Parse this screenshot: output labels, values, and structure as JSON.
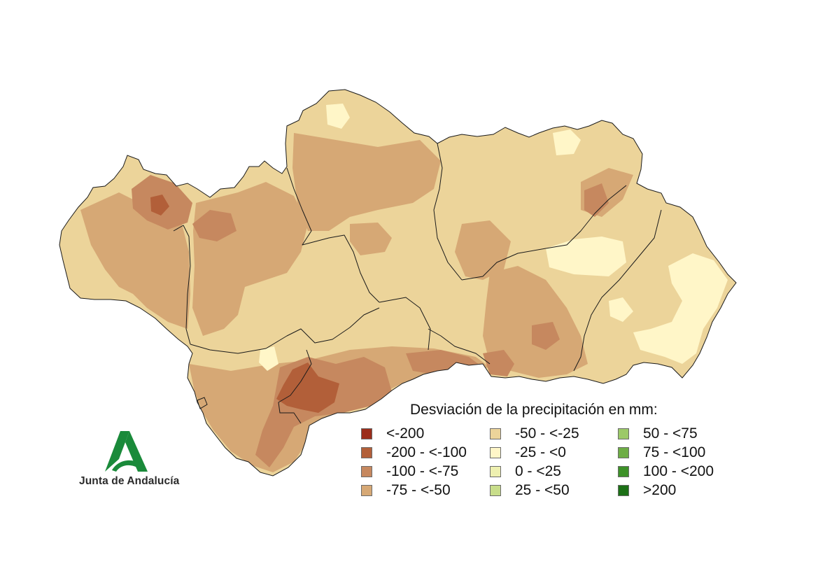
{
  "legend": {
    "title": "Desviación de la precipitación en mm:",
    "classes": [
      {
        "label": "<-200",
        "color": "#9b2d1a"
      },
      {
        "label": "-200 - <-100",
        "color": "#b25f39"
      },
      {
        "label": "-100 - <-75",
        "color": "#c6885f"
      },
      {
        "label": "-75 - <-50",
        "color": "#d6a875"
      },
      {
        "label": "-50 - <-25",
        "color": "#ecd49a"
      },
      {
        "label": "-25 - <0",
        "color": "#fff6c8"
      },
      {
        "label": "0 - <25",
        "color": "#eef0b0"
      },
      {
        "label": "25 - <50",
        "color": "#c8dd8a"
      },
      {
        "label": "50 - <75",
        "color": "#9cc968"
      },
      {
        "label": "75 - <100",
        "color": "#6ead45"
      },
      {
        "label": "100 - <200",
        "color": "#3d9128"
      },
      {
        "label": ">200",
        "color": "#1c7016"
      }
    ]
  },
  "logo": {
    "text": "Junta de Andalucía",
    "color": "#1a8a3a"
  }
}
